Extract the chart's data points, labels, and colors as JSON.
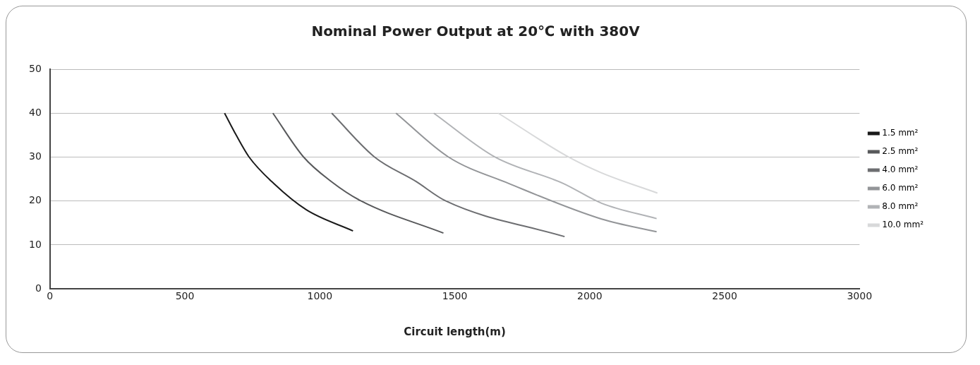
{
  "chart_data": {
    "type": "line",
    "title": "Nominal Power Output at 20℃ with 380V",
    "xlabel": "Circuit length(m)",
    "xlim": [
      0,
      3000
    ],
    "xticks": [
      0,
      500,
      1000,
      1500,
      2000,
      2500,
      3000
    ],
    "ylim": [
      0,
      50
    ],
    "yticks": [
      0,
      10,
      20,
      30,
      40,
      50
    ],
    "grid": "y",
    "legend": "right",
    "marker": "none",
    "line_style": "solid",
    "series": [
      {
        "name": "1.5 mm²",
        "color": "#1a1a1a",
        "x": [
          647,
          690,
          738,
          829,
          950,
          1123
        ],
        "values": [
          40,
          35,
          30,
          24,
          18,
          13.2
        ]
      },
      {
        "name": "2.5 mm²",
        "color": "#58595b",
        "x": [
          826,
          940,
          1041,
          1153,
          1458
        ],
        "values": [
          40,
          30,
          24.5,
          20,
          12.7
        ]
      },
      {
        "name": "4.0 mm²",
        "color": "#6d6e71",
        "x": [
          1044,
          1203,
          1355,
          1467,
          1907
        ],
        "values": [
          40,
          30,
          24.5,
          20,
          11.9
        ]
      },
      {
        "name": "6.0 mm²",
        "color": "#939598",
        "x": [
          1282,
          1477,
          1700,
          2044,
          2248
        ],
        "values": [
          40,
          30,
          24,
          15.9,
          13
        ]
      },
      {
        "name": "8.0 mm²",
        "color": "#b1b3b6",
        "x": [
          1422,
          1649,
          1902,
          2044,
          2248
        ],
        "values": [
          40,
          30,
          24,
          19.5,
          16
        ]
      },
      {
        "name": "10.0 mm²",
        "color": "#d8d9da",
        "x": [
          1661,
          1922,
          2044,
          2251
        ],
        "values": [
          40,
          30,
          26.4,
          21.8
        ]
      }
    ]
  }
}
